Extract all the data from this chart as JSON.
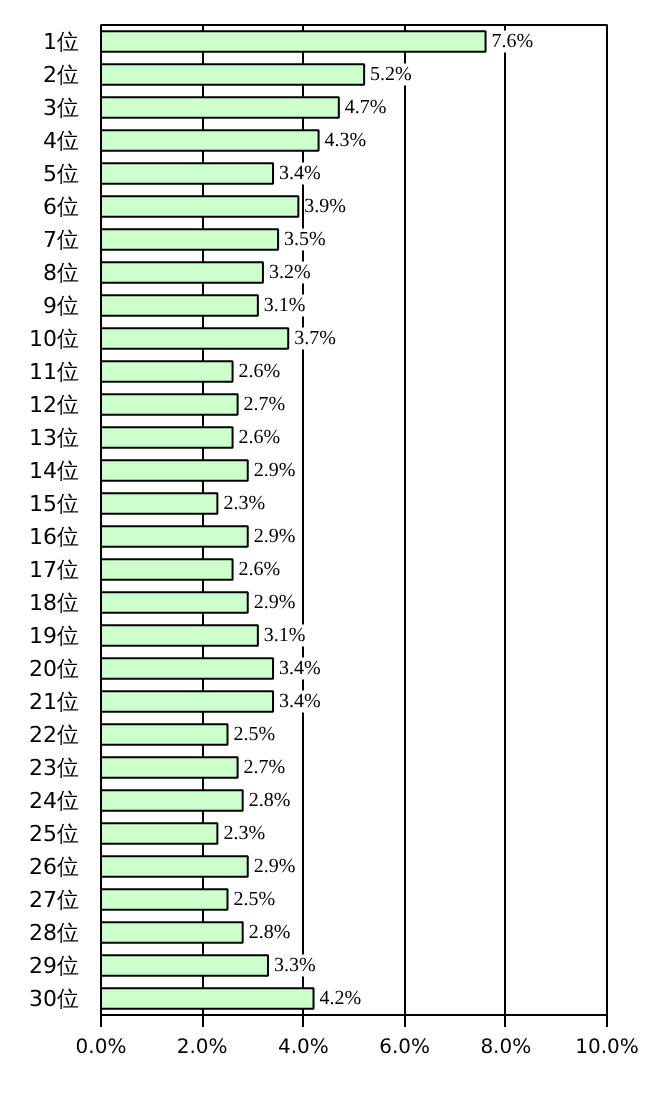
{
  "chart_data": {
    "type": "bar",
    "orientation": "horizontal",
    "categories": [
      "1位",
      "2位",
      "3位",
      "4位",
      "5位",
      "6位",
      "7位",
      "8位",
      "9位",
      "10位",
      "11位",
      "12位",
      "13位",
      "14位",
      "15位",
      "16位",
      "17位",
      "18位",
      "19位",
      "20位",
      "21位",
      "22位",
      "23位",
      "24位",
      "25位",
      "26位",
      "27位",
      "28位",
      "29位",
      "30位"
    ],
    "values": [
      7.6,
      5.2,
      4.7,
      4.3,
      3.4,
      3.9,
      3.5,
      3.2,
      3.1,
      3.7,
      2.6,
      2.7,
      2.6,
      2.9,
      2.3,
      2.9,
      2.6,
      2.9,
      3.1,
      3.4,
      3.4,
      2.5,
      2.7,
      2.8,
      2.3,
      2.9,
      2.5,
      2.8,
      3.3,
      4.2
    ],
    "value_labels": [
      "7.6%",
      "5.2%",
      "4.7%",
      "4.3%",
      "3.4%",
      "3.9%",
      "3.5%",
      "3.2%",
      "3.1%",
      "3.7%",
      "2.6%",
      "2.7%",
      "2.6%",
      "2.9%",
      "2.3%",
      "2.9%",
      "2.6%",
      "2.9%",
      "3.1%",
      "3.4%",
      "3.4%",
      "2.5%",
      "2.7%",
      "2.8%",
      "2.3%",
      "2.9%",
      "2.5%",
      "2.8%",
      "3.3%",
      "4.2%"
    ],
    "color": "#ccffcc",
    "xlim": [
      0,
      10
    ],
    "xticks": [
      {
        "value": 0,
        "label": "0.0%"
      },
      {
        "value": 2,
        "label": "2.0%"
      },
      {
        "value": 4,
        "label": "4.0%"
      },
      {
        "value": 6,
        "label": "6.0%"
      },
      {
        "value": 8,
        "label": "8.0%"
      },
      {
        "value": 10,
        "label": "10.0%"
      }
    ],
    "grid": "x"
  }
}
